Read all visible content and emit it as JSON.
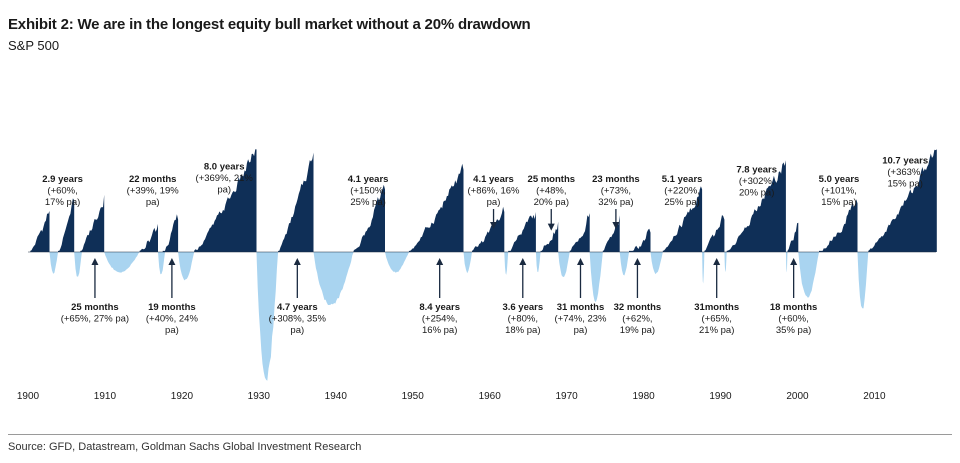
{
  "title": "Exhibit 2: We are in the longest equity bull market without a 20% drawdown",
  "subtitle": "S&P 500",
  "source": "Source: GFD, Datastream, Goldman Sachs Global Investment Research",
  "colors": {
    "bull": "#0f2f57",
    "bear": "#a9d4f0",
    "arrow": "#1a2a40"
  },
  "chart_data": {
    "type": "area",
    "title": "Exhibit 2: We are in the longest equity bull market without a 20% drawdown",
    "subtitle": "S&P 500",
    "xlabel": "",
    "ylabel": "",
    "xlim": [
      1900,
      2018
    ],
    "x_ticks": [
      1900,
      1910,
      1920,
      1930,
      1940,
      1950,
      1960,
      1970,
      1980,
      1990,
      2000,
      2010
    ],
    "grid": false,
    "legend": "none",
    "series": [
      {
        "name": "",
        "type": "bull",
        "segments": [
          [
            1900.3,
            1902.8,
            0.0,
            0.38
          ],
          [
            1903.9,
            1906.0,
            0.0,
            0.48
          ],
          [
            1906.8,
            1909.9,
            0.0,
            0.53
          ],
          [
            1914.5,
            1916.9,
            0.0,
            0.26
          ],
          [
            1917.5,
            1919.5,
            0.0,
            0.3
          ],
          [
            1921.6,
            1929.7,
            0.0,
            0.95
          ],
          [
            1932.5,
            1937.1,
            0.0,
            0.92
          ],
          [
            1942.3,
            1946.4,
            0.0,
            0.58
          ],
          [
            1949.5,
            1956.6,
            0.0,
            0.76
          ],
          [
            1957.7,
            1961.9,
            0.0,
            0.37
          ],
          [
            1962.4,
            1966.0,
            0.0,
            0.37
          ],
          [
            1966.6,
            1968.9,
            0.0,
            0.28
          ],
          [
            1970.4,
            1973.0,
            0.0,
            0.36
          ],
          [
            1974.7,
            1976.9,
            0.0,
            0.34
          ],
          [
            1978.1,
            1980.9,
            0.0,
            0.18
          ],
          [
            1982.5,
            1987.6,
            0.0,
            0.58
          ],
          [
            1987.9,
            1990.5,
            0.0,
            0.3
          ],
          [
            1990.8,
            1998.5,
            0.0,
            0.85
          ],
          [
            1998.7,
            2000.1,
            0.0,
            0.27
          ],
          [
            2002.8,
            2007.8,
            0.0,
            0.45
          ],
          [
            2009.2,
            2018.1,
            0.0,
            0.95
          ]
        ]
      },
      {
        "name": "",
        "type": "bear",
        "segments": [
          [
            1902.8,
            1903.9,
            -0.17
          ],
          [
            1906.0,
            1907.0,
            -0.2
          ],
          [
            1909.9,
            1914.5,
            -0.16
          ],
          [
            1916.9,
            1917.8,
            -0.18
          ],
          [
            1919.5,
            1921.6,
            -0.22
          ],
          [
            1929.7,
            1932.5,
            -1.0
          ],
          [
            1937.1,
            1942.3,
            -0.42
          ],
          [
            1946.4,
            1949.5,
            -0.16
          ],
          [
            1956.6,
            1957.7,
            -0.16
          ],
          [
            1961.9,
            1962.4,
            -0.18
          ],
          [
            1966.0,
            1966.6,
            -0.16
          ],
          [
            1968.9,
            1970.4,
            -0.2
          ],
          [
            1973.0,
            1974.7,
            -0.38
          ],
          [
            1976.9,
            1978.1,
            -0.18
          ],
          [
            1980.9,
            1982.5,
            -0.17
          ],
          [
            1987.6,
            1987.9,
            -0.25
          ],
          [
            1990.5,
            1990.8,
            -0.16
          ],
          [
            1998.5,
            1998.7,
            -0.16
          ],
          [
            2000.1,
            2002.8,
            -0.36
          ],
          [
            2007.8,
            2009.2,
            -0.45
          ]
        ]
      }
    ],
    "annotations": [
      {
        "x": 1904.5,
        "pos": "above",
        "lines": [
          "2.9 years",
          "(+60%,",
          "17% pa)"
        ]
      },
      {
        "x": 1908.7,
        "pos": "below",
        "lines": [
          "25 months",
          "(+65%, 27% pa)"
        ]
      },
      {
        "x": 1916.2,
        "pos": "above",
        "lines": [
          "22 months",
          "(+39%, 19%",
          "pa)"
        ]
      },
      {
        "x": 1918.7,
        "pos": "below",
        "lines": [
          "19 months",
          "(+40%, 24%",
          "pa)"
        ]
      },
      {
        "x": 1925.5,
        "pos": "above",
        "lines": [
          "8.0 years",
          "(+369%, 21%",
          "pa)"
        ]
      },
      {
        "x": 1935.0,
        "pos": "below",
        "lines": [
          "4.7 years",
          "(+308%, 35%",
          "pa)"
        ]
      },
      {
        "x": 1944.2,
        "pos": "above",
        "lines": [
          "4.1  years",
          "(+150%,",
          "25% pa)"
        ]
      },
      {
        "x": 1953.5,
        "pos": "below",
        "lines": [
          "8.4 years",
          "(+254%,",
          "16% pa)"
        ]
      },
      {
        "x": 1960.5,
        "pos": "above",
        "lines": [
          "4.1 years",
          "(+86%, 16%",
          "pa)"
        ]
      },
      {
        "x": 1964.3,
        "pos": "below",
        "lines": [
          "3.6 years",
          "(+80%,",
          "18% pa)"
        ]
      },
      {
        "x": 1968.0,
        "pos": "above",
        "lines": [
          "25 months",
          "(+48%,",
          "20% pa)"
        ]
      },
      {
        "x": 1971.8,
        "pos": "below",
        "lines": [
          "31 months",
          "(+74%, 23%",
          "pa)"
        ]
      },
      {
        "x": 1976.4,
        "pos": "above",
        "lines": [
          "23 months",
          "(+73%,",
          "32% pa)"
        ]
      },
      {
        "x": 1979.2,
        "pos": "below",
        "lines": [
          "32 months",
          "(+62%,",
          "19% pa)"
        ]
      },
      {
        "x": 1985.0,
        "pos": "above",
        "lines": [
          "5.1 years",
          "(+220%,",
          "25% pa)"
        ]
      },
      {
        "x": 1989.5,
        "pos": "below",
        "lines": [
          "31months",
          "(+65%,",
          "21% pa)"
        ]
      },
      {
        "x": 1994.7,
        "pos": "above",
        "lines": [
          "7.8 years",
          "(+302%,",
          "20% pa)"
        ]
      },
      {
        "x": 1999.5,
        "pos": "below",
        "lines": [
          "18 months",
          "(+60%,",
          "35% pa)"
        ]
      },
      {
        "x": 2005.4,
        "pos": "above",
        "lines": [
          "5.0 years",
          "(+101%,",
          "15% pa)"
        ]
      },
      {
        "x": 2014.0,
        "pos": "above",
        "lines": [
          "10.7 years",
          "(+363%,",
          "15% pa)"
        ]
      }
    ]
  }
}
